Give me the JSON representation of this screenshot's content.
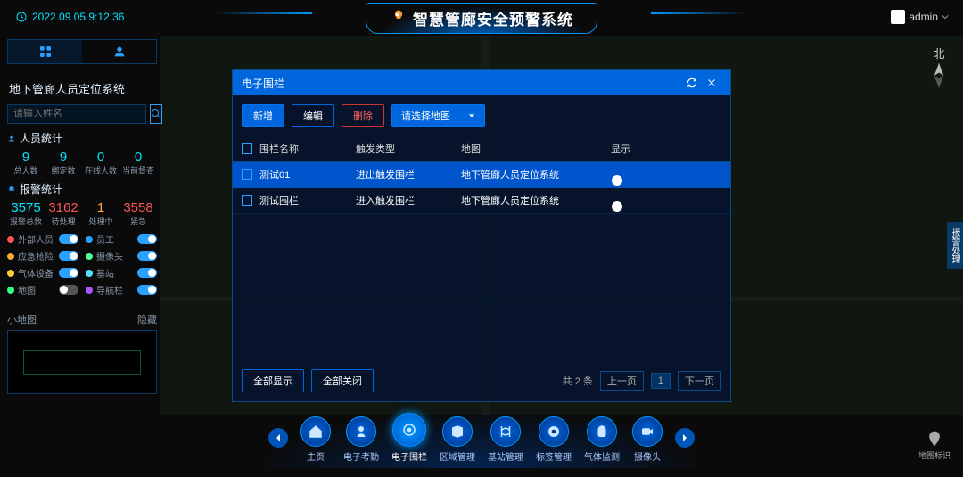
{
  "header": {
    "timestamp": "2022.09.05 9:12:36",
    "title": "智慧管廊安全预警系统",
    "user": "admin"
  },
  "compass": {
    "north": "北"
  },
  "left": {
    "panel_title": "地下管廊人员定位系统",
    "search_placeholder": "请输入姓名",
    "person_stats_title": "人员统计",
    "person_stats": [
      {
        "value": "9",
        "label": "总人数"
      },
      {
        "value": "9",
        "label": "绑定数"
      },
      {
        "value": "0",
        "label": "在线人数"
      },
      {
        "value": "0",
        "label": "当前督查"
      }
    ],
    "alarm_stats_title": "报警统计",
    "alarm_stats": [
      {
        "value": "3575",
        "label": "报警总数",
        "cls": ""
      },
      {
        "value": "3162",
        "label": "待处理",
        "cls": "red"
      },
      {
        "value": "1",
        "label": "处理中",
        "cls": "orange"
      },
      {
        "value": "3558",
        "label": "紧急",
        "cls": "red"
      }
    ],
    "toggles": [
      {
        "label": "外部人员",
        "color": "#ff5555",
        "on": true
      },
      {
        "label": "员工",
        "color": "#2aa0ff",
        "on": true
      },
      {
        "label": "应急抢险",
        "color": "#ffaa33",
        "on": true
      },
      {
        "label": "摄像头",
        "color": "#55ff99",
        "on": true
      },
      {
        "label": "气体设备",
        "color": "#ffcc33",
        "on": true
      },
      {
        "label": "基站",
        "color": "#55ddff",
        "on": true
      },
      {
        "label": "地图",
        "color": "#33ff88",
        "on": false
      },
      {
        "label": "导航栏",
        "color": "#aa55ff",
        "on": true
      }
    ],
    "minimap_title": "小地图",
    "minimap_hide": "隐藏"
  },
  "modal": {
    "title": "电子围栏",
    "btn_add": "新增",
    "btn_edit": "编辑",
    "btn_delete": "删除",
    "select_placeholder": "请选择地图",
    "cols": {
      "name": "围栏名称",
      "type": "触发类型",
      "map": "地图",
      "show": "显示"
    },
    "rows": [
      {
        "name": "测试01",
        "type": "进出触发围栏",
        "map": "地下管廊人员定位系统",
        "selected": true
      },
      {
        "name": "测试围栏",
        "type": "进入触发围栏",
        "map": "地下管廊人员定位系统",
        "selected": false
      }
    ],
    "btn_show_all": "全部显示",
    "btn_close_all": "全部关闭",
    "total": "共 2 条",
    "prev": "上一页",
    "page": "1",
    "next": "下一页"
  },
  "nav": {
    "items": [
      {
        "id": "home",
        "label": "主页"
      },
      {
        "id": "attendance",
        "label": "电子考勤"
      },
      {
        "id": "fence",
        "label": "电子围栏",
        "active": true
      },
      {
        "id": "area",
        "label": "区域管理"
      },
      {
        "id": "station",
        "label": "基站管理"
      },
      {
        "id": "tag",
        "label": "标签管理"
      },
      {
        "id": "gas",
        "label": "气体监测"
      },
      {
        "id": "camera",
        "label": "摄像头"
      }
    ]
  },
  "side_btn": "报警处理",
  "map_legend": "地图标识"
}
